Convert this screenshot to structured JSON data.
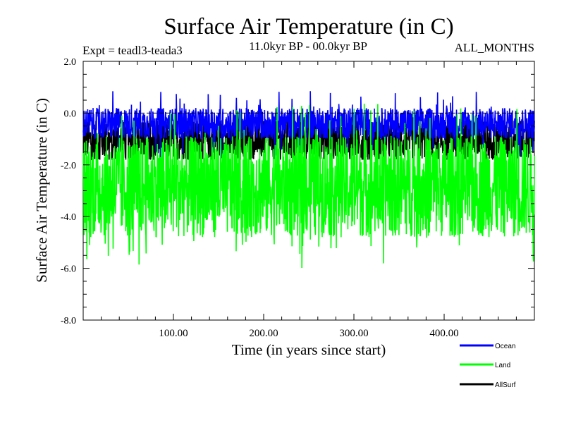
{
  "chart_data": {
    "type": "line",
    "title": "Surface Air Temperature (in C)",
    "subtitle_left": "Expt = teadl3-teada3",
    "subtitle_center": "11.0kyr BP - 00.0kyr BP",
    "subtitle_right": "ALL_MONTHS",
    "xlabel": "Time (in years since start)",
    "ylabel": "Surface Air Temperature (in C)",
    "xlim": [
      0,
      500
    ],
    "ylim": [
      -8.0,
      2.0
    ],
    "x_ticks": [
      100,
      200,
      300,
      400
    ],
    "x_tick_labels": [
      "100.00",
      "200.00",
      "300.00",
      "400.00"
    ],
    "y_ticks": [
      2.0,
      0.0,
      -2.0,
      -4.0,
      -6.0,
      -8.0
    ],
    "y_tick_labels": [
      "2.0",
      "0.0",
      "-2.0",
      "-4.0",
      "-6.0",
      "-8.0"
    ],
    "reference_line": 0.0,
    "series": [
      {
        "name": "Ocean",
        "color": "#0000ff",
        "band_low": -1.0,
        "band_high": 0.2,
        "min": -1.8,
        "max": 0.85,
        "trend_note": "roughly flat, ~-0.4 mean"
      },
      {
        "name": "Land",
        "color": "#00ff00",
        "band_low": -4.8,
        "band_high": -0.9,
        "min": -6.0,
        "max": 0.4,
        "trend_note": "roughly flat, ~-2.8 mean"
      },
      {
        "name": "AllSurf",
        "color": "#000000",
        "band_low": -1.8,
        "band_high": -0.3,
        "min": -1.8,
        "max": -0.3,
        "trend_note": "mostly hidden behind other series"
      }
    ]
  },
  "legend": {
    "items": [
      {
        "label": "Ocean",
        "color": "#0000ff"
      },
      {
        "label": "Land",
        "color": "#00ff00"
      },
      {
        "label": "AllSurf",
        "color": "#000000"
      }
    ]
  }
}
